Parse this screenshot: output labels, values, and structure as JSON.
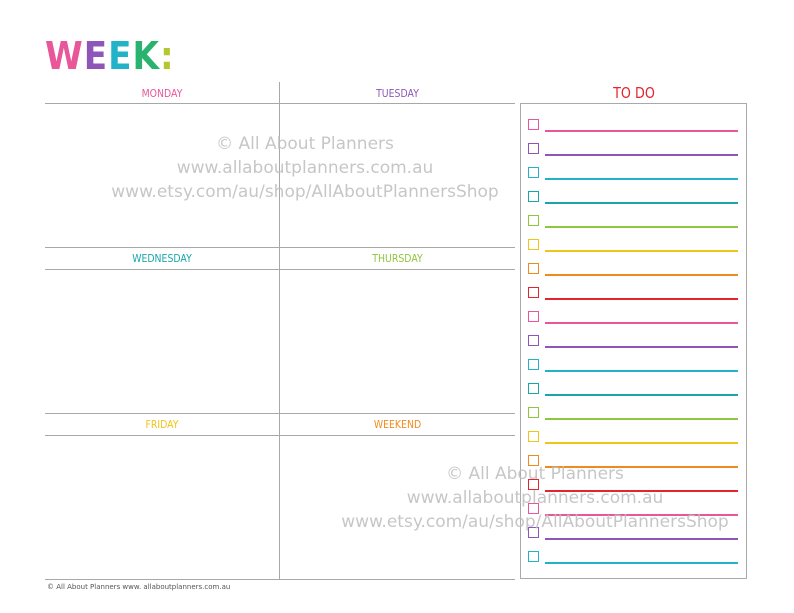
{
  "header": {
    "letters": [
      {
        "char": "W",
        "color": "#e8579a"
      },
      {
        "char": "E",
        "color": "#8e56b8"
      },
      {
        "char": "E",
        "color": "#23b3c9"
      },
      {
        "char": "K",
        "color": "#29b36e"
      },
      {
        "char": ":",
        "color": "#b4c730"
      }
    ]
  },
  "days": {
    "monday": {
      "label": "MONDAY",
      "color": "#e8579a"
    },
    "tuesday": {
      "label": "TUESDAY",
      "color": "#8e56b8"
    },
    "wednesday": {
      "label": "WEDNESDAY",
      "color": "#1aa5a8"
    },
    "thursday": {
      "label": "THURSDAY",
      "color": "#8ec63f"
    },
    "friday": {
      "label": "FRIDAY",
      "color": "#f0c419"
    },
    "weekend": {
      "label": "WEEKEND",
      "color": "#f08a1c"
    }
  },
  "todo": {
    "title": "TO DO",
    "colors": [
      "#e8579a",
      "#8e56b8",
      "#23b3c9",
      "#1aa5a8",
      "#8ec63f",
      "#f0c419",
      "#f08a1c",
      "#e3262e",
      "#e8579a",
      "#8e56b8",
      "#23b3c9",
      "#1aa5a8",
      "#8ec63f",
      "#f0c419",
      "#f08a1c",
      "#e3262e",
      "#e8579a",
      "#8e56b8",
      "#23b3c9"
    ]
  },
  "watermark": {
    "line1": "© All About Planners",
    "line2": "www.allaboutplanners.com.au",
    "line3": "www.etsy.com/au/shop/AllAboutPlannersShop"
  },
  "footer": {
    "text": "© All About Planners   www. allaboutplanners.com.au"
  }
}
